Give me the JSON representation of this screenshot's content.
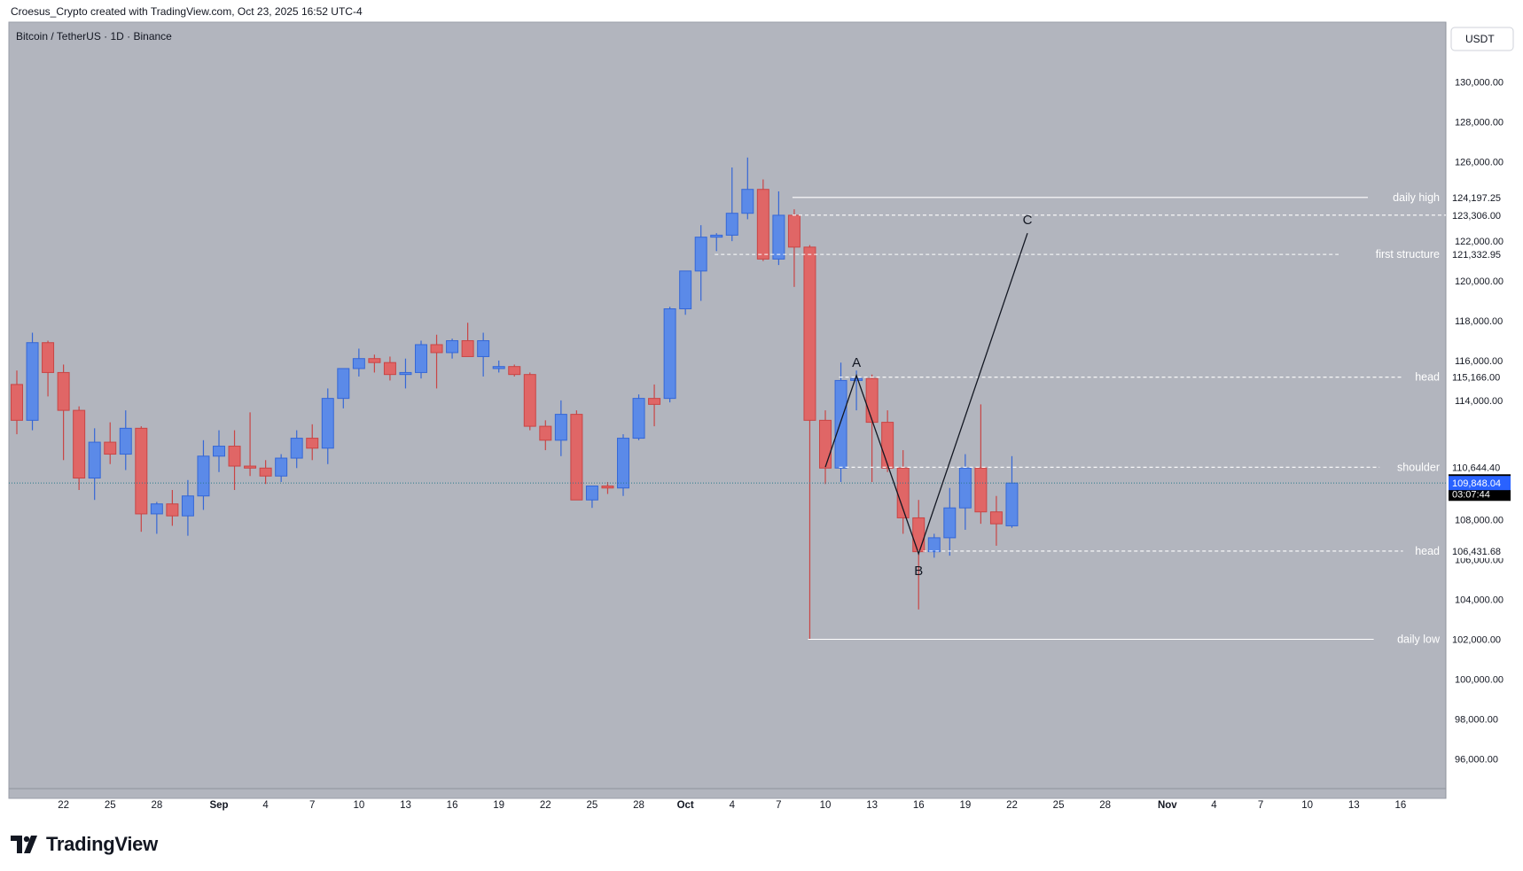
{
  "header": {
    "caption": "Croesus_Crypto created with TradingView.com, Oct 23, 2025 16:52 UTC-4"
  },
  "brand": {
    "name": "TradingView",
    "icon": "tradingview-logo-icon"
  },
  "colors": {
    "background": "#b2b5be",
    "bull": "#5b8ae8",
    "bull_border": "#3567d6",
    "bear": "#e06666",
    "bear_border": "#c94545",
    "level_line": "#ffffff",
    "current_price": "#2962ff",
    "countdown_bg": "#000000"
  },
  "chart_data": {
    "type": "candlestick",
    "title": "Bitcoin / TetherUS · 1D · Binance",
    "currency": "USDT",
    "x_axis": {
      "start_date": "Aug 19",
      "last_candle": "Oct 23",
      "end_date": "Nov 18",
      "tick_labels": [
        {
          "label": "22",
          "date": "Aug 22"
        },
        {
          "label": "25",
          "date": "Aug 25"
        },
        {
          "label": "28",
          "date": "Aug 28"
        },
        {
          "label": "Sep",
          "date": "Sep 1"
        },
        {
          "label": "4",
          "date": "Sep 4"
        },
        {
          "label": "7",
          "date": "Sep 7"
        },
        {
          "label": "10",
          "date": "Sep 10"
        },
        {
          "label": "13",
          "date": "Sep 13"
        },
        {
          "label": "16",
          "date": "Sep 16"
        },
        {
          "label": "19",
          "date": "Sep 19"
        },
        {
          "label": "22",
          "date": "Sep 22"
        },
        {
          "label": "25",
          "date": "Sep 25"
        },
        {
          "label": "28",
          "date": "Sep 28"
        },
        {
          "label": "Oct",
          "date": "Oct 1"
        },
        {
          "label": "4",
          "date": "Oct 4"
        },
        {
          "label": "7",
          "date": "Oct 7"
        },
        {
          "label": "10",
          "date": "Oct 10"
        },
        {
          "label": "13",
          "date": "Oct 13"
        },
        {
          "label": "16",
          "date": "Oct 16"
        },
        {
          "label": "19",
          "date": "Oct 19"
        },
        {
          "label": "22",
          "date": "Oct 22"
        },
        {
          "label": "25",
          "date": "Oct 25"
        },
        {
          "label": "28",
          "date": "Oct 28"
        },
        {
          "label": "Nov",
          "date": "Nov 1"
        },
        {
          "label": "4",
          "date": "Nov 4"
        },
        {
          "label": "7",
          "date": "Nov 7"
        },
        {
          "label": "10",
          "date": "Nov 10"
        },
        {
          "label": "13",
          "date": "Nov 13"
        },
        {
          "label": "16",
          "date": "Nov 16"
        }
      ]
    },
    "y_axis": {
      "range": [
        94500,
        133000
      ],
      "tick_labels": [
        "130,000.00",
        "128,000.00",
        "126,000.00",
        "122,000.00",
        "120,000.00",
        "118,000.00",
        "116,000.00",
        "114,000.00",
        "108,000.00",
        "106,000.00",
        "104,000.00",
        "100,000.00",
        "98,000.00",
        "96,000.00"
      ],
      "tick_values": [
        130000,
        128000,
        126000,
        122000,
        120000,
        118000,
        116000,
        114000,
        108000,
        106000,
        104000,
        100000,
        98000,
        96000
      ]
    },
    "candles": [
      {
        "date": "Aug 19",
        "o": 114800,
        "h": 115500,
        "l": 112300,
        "c": 113000
      },
      {
        "date": "Aug 20",
        "o": 113000,
        "h": 117400,
        "l": 112500,
        "c": 116900
      },
      {
        "date": "Aug 21",
        "o": 116900,
        "h": 117000,
        "l": 114200,
        "c": 115400
      },
      {
        "date": "Aug 22",
        "o": 115400,
        "h": 115800,
        "l": 111000,
        "c": 113500
      },
      {
        "date": "Aug 23",
        "o": 113500,
        "h": 113700,
        "l": 109500,
        "c": 110100
      },
      {
        "date": "Aug 24",
        "o": 110100,
        "h": 112600,
        "l": 109000,
        "c": 111900
      },
      {
        "date": "Aug 25",
        "o": 111900,
        "h": 112900,
        "l": 110800,
        "c": 111300
      },
      {
        "date": "Aug 26",
        "o": 111300,
        "h": 113500,
        "l": 110500,
        "c": 112600
      },
      {
        "date": "Aug 27",
        "o": 112600,
        "h": 112700,
        "l": 107400,
        "c": 108300
      },
      {
        "date": "Aug 28",
        "o": 108300,
        "h": 108900,
        "l": 107300,
        "c": 108800
      },
      {
        "date": "Aug 29",
        "o": 108800,
        "h": 109500,
        "l": 107700,
        "c": 108200
      },
      {
        "date": "Aug 30",
        "o": 108200,
        "h": 110000,
        "l": 107200,
        "c": 109200
      },
      {
        "date": "Aug 31",
        "o": 109200,
        "h": 112000,
        "l": 108500,
        "c": 111200
      },
      {
        "date": "Sep 1",
        "o": 111200,
        "h": 112500,
        "l": 110400,
        "c": 111700
      },
      {
        "date": "Sep 2",
        "o": 111700,
        "h": 112500,
        "l": 109500,
        "c": 110700
      },
      {
        "date": "Sep 3",
        "o": 110700,
        "h": 113400,
        "l": 110200,
        "c": 110600
      },
      {
        "date": "Sep 4",
        "o": 110600,
        "h": 111000,
        "l": 109800,
        "c": 110200
      },
      {
        "date": "Sep 5",
        "o": 110200,
        "h": 111300,
        "l": 109900,
        "c": 111100
      },
      {
        "date": "Sep 6",
        "o": 111100,
        "h": 112500,
        "l": 110600,
        "c": 112100
      },
      {
        "date": "Sep 7",
        "o": 112100,
        "h": 112800,
        "l": 111000,
        "c": 111600
      },
      {
        "date": "Sep 8",
        "o": 111600,
        "h": 114600,
        "l": 110800,
        "c": 114100
      },
      {
        "date": "Sep 9",
        "o": 114100,
        "h": 115600,
        "l": 113600,
        "c": 115600
      },
      {
        "date": "Sep 10",
        "o": 115600,
        "h": 116600,
        "l": 115200,
        "c": 116100
      },
      {
        "date": "Sep 11",
        "o": 116100,
        "h": 116300,
        "l": 115400,
        "c": 115900
      },
      {
        "date": "Sep 12",
        "o": 115900,
        "h": 116200,
        "l": 115000,
        "c": 115300
      },
      {
        "date": "Sep 13",
        "o": 115300,
        "h": 116100,
        "l": 114600,
        "c": 115400
      },
      {
        "date": "Sep 14",
        "o": 115400,
        "h": 117000,
        "l": 115100,
        "c": 116800
      },
      {
        "date": "Sep 15",
        "o": 116800,
        "h": 117300,
        "l": 114600,
        "c": 116400
      },
      {
        "date": "Sep 16",
        "o": 116400,
        "h": 117100,
        "l": 116100,
        "c": 117000
      },
      {
        "date": "Sep 17",
        "o": 117000,
        "h": 117900,
        "l": 116500,
        "c": 116200
      },
      {
        "date": "Sep 18",
        "o": 116200,
        "h": 117400,
        "l": 115200,
        "c": 117000
      },
      {
        "date": "Sep 19",
        "o": 115600,
        "h": 116000,
        "l": 115400,
        "c": 115700
      },
      {
        "date": "Sep 20",
        "o": 115700,
        "h": 115800,
        "l": 115200,
        "c": 115300
      },
      {
        "date": "Sep 21",
        "o": 115300,
        "h": 115400,
        "l": 112500,
        "c": 112700
      },
      {
        "date": "Sep 22",
        "o": 112700,
        "h": 113000,
        "l": 111500,
        "c": 112000
      },
      {
        "date": "Sep 23",
        "o": 112000,
        "h": 114000,
        "l": 111200,
        "c": 113300
      },
      {
        "date": "Sep 24",
        "o": 113300,
        "h": 113500,
        "l": 109000,
        "c": 109000
      },
      {
        "date": "Sep 25",
        "o": 109000,
        "h": 109700,
        "l": 108600,
        "c": 109700
      },
      {
        "date": "Sep 26",
        "o": 109700,
        "h": 109900,
        "l": 109300,
        "c": 109600
      },
      {
        "date": "Sep 27",
        "o": 109600,
        "h": 112300,
        "l": 109200,
        "c": 112100
      },
      {
        "date": "Sep 28",
        "o": 112100,
        "h": 114300,
        "l": 112000,
        "c": 114100
      },
      {
        "date": "Sep 29",
        "o": 114100,
        "h": 114800,
        "l": 112700,
        "c": 113800
      },
      {
        "date": "Sep 30",
        "o": 114100,
        "h": 118700,
        "l": 113900,
        "c": 118600
      },
      {
        "date": "Oct 1",
        "o": 118600,
        "h": 120500,
        "l": 118300,
        "c": 120500
      },
      {
        "date": "Oct 2",
        "o": 120500,
        "h": 122800,
        "l": 119000,
        "c": 122200
      },
      {
        "date": "Oct 3",
        "o": 122200,
        "h": 122400,
        "l": 121500,
        "c": 122300
      },
      {
        "date": "Oct 4",
        "o": 122300,
        "h": 125700,
        "l": 122000,
        "c": 123400
      },
      {
        "date": "Oct 5",
        "o": 123400,
        "h": 126200,
        "l": 123100,
        "c": 124600
      },
      {
        "date": "Oct 6",
        "o": 124600,
        "h": 125100,
        "l": 121000,
        "c": 121100
      },
      {
        "date": "Oct 7",
        "o": 121100,
        "h": 124500,
        "l": 120800,
        "c": 123300
      },
      {
        "date": "Oct 8",
        "o": 123300,
        "h": 123600,
        "l": 119700,
        "c": 121700
      },
      {
        "date": "Oct 9",
        "o": 121700,
        "h": 121800,
        "l": 102000,
        "c": 113000
      },
      {
        "date": "Oct 10",
        "o": 113000,
        "h": 113500,
        "l": 109800,
        "c": 110600
      },
      {
        "date": "Oct 11",
        "o": 110600,
        "h": 115900,
        "l": 109900,
        "c": 115000
      },
      {
        "date": "Oct 12",
        "o": 115000,
        "h": 115500,
        "l": 113500,
        "c": 115100
      },
      {
        "date": "Oct 13",
        "o": 115100,
        "h": 115300,
        "l": 109900,
        "c": 112900
      },
      {
        "date": "Oct 14",
        "o": 112900,
        "h": 113500,
        "l": 110400,
        "c": 110600
      },
      {
        "date": "Oct 15",
        "o": 110600,
        "h": 111500,
        "l": 107300,
        "c": 108100
      },
      {
        "date": "Oct 16",
        "o": 108100,
        "h": 109000,
        "l": 103500,
        "c": 106400
      },
      {
        "date": "Oct 17",
        "o": 106400,
        "h": 107300,
        "l": 106100,
        "c": 107100
      },
      {
        "date": "Oct 18",
        "o": 107100,
        "h": 109600,
        "l": 106200,
        "c": 108600
      },
      {
        "date": "Oct 19",
        "o": 108600,
        "h": 111300,
        "l": 107500,
        "c": 110600
      },
      {
        "date": "Oct 20",
        "o": 110600,
        "h": 113800,
        "l": 107800,
        "c": 108400
      },
      {
        "date": "Oct 21",
        "o": 108400,
        "h": 109200,
        "l": 106700,
        "c": 107800
      },
      {
        "date": "Oct 22",
        "o": 107700,
        "h": 111200,
        "l": 107600,
        "c": 109848.04
      }
    ],
    "levels": [
      {
        "label": "daily high",
        "price": 124197.25,
        "tag": "124,197.25",
        "from": "Oct 8",
        "style": "solid"
      },
      {
        "label": "",
        "price": 123306.0,
        "tag": "123,306.00",
        "from": "Oct 8",
        "style": "dashed"
      },
      {
        "label": "first structure",
        "price": 121332.95,
        "tag": "121,332.95",
        "from": "Oct 3",
        "style": "dashed"
      },
      {
        "label": "head",
        "price": 115166.0,
        "tag": "115,166.00",
        "from": "Oct 11",
        "style": "dashed"
      },
      {
        "label": "shoulder",
        "price": 110644.4,
        "tag": "110,644.40",
        "from": "Oct 11",
        "style": "dashed"
      },
      {
        "label": "head",
        "price": 106431.68,
        "tag": "106,431.68",
        "from": "Oct 16",
        "style": "dashed"
      },
      {
        "label": "daily low",
        "price": 102000.0,
        "tag": "102,000.00",
        "from": "Oct 9",
        "style": "solid"
      }
    ],
    "current_price": {
      "price": 109848.04,
      "tag": "109,848.04",
      "countdown": "03:07:44"
    },
    "waves": {
      "points": [
        {
          "label": "",
          "date": "Oct 10",
          "price": 110650
        },
        {
          "label": "A",
          "date": "Oct 12",
          "price": 115250
        },
        {
          "label": "B",
          "date": "Oct 16",
          "price": 106300
        },
        {
          "label": "C",
          "date": "Oct 23",
          "price": 122400
        }
      ]
    }
  }
}
